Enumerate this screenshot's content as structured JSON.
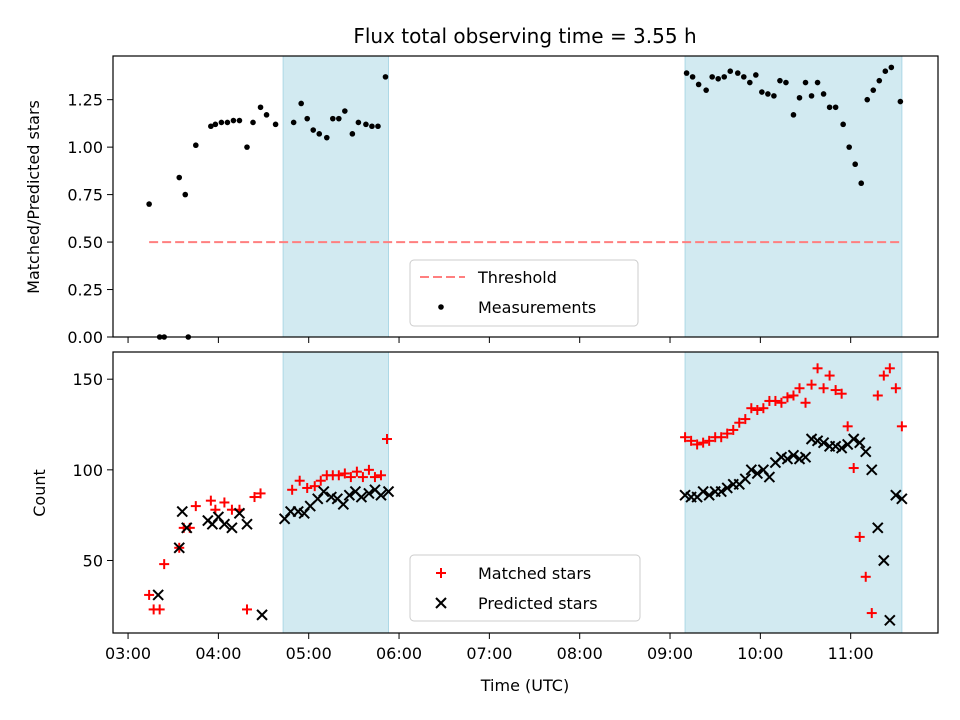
{
  "figure": {
    "title": "Flux total observing time = 3.55 h"
  },
  "chart_data": [
    {
      "type": "scatter",
      "panel": "top",
      "title": "Flux total observing time = 3.55 h",
      "xlabel": "",
      "ylabel": "Matched/Predicted stars",
      "xlim": [
        "02:50",
        "11:58"
      ],
      "ylim": [
        0,
        1.48
      ],
      "x_tick_labels": [],
      "y_ticks": [
        0.0,
        0.25,
        0.5,
        0.75,
        1.0,
        1.25
      ],
      "y_tick_labels": [
        "0.00",
        "0.25",
        "0.50",
        "0.75",
        "1.00",
        "1.25"
      ],
      "grid": false,
      "legend_position": "bottom-center",
      "legend": [
        "Threshold",
        "Measurements"
      ],
      "colors": {
        "threshold": "#ff7f7f",
        "measurements": "#000000",
        "span": "#add8e6"
      },
      "shaded_intervals": [
        [
          "04:43",
          "05:53"
        ],
        [
          "09:10",
          "11:34"
        ]
      ],
      "threshold": {
        "name": "Threshold",
        "value": 0.5,
        "x_range": [
          "03:14",
          "11:34"
        ]
      },
      "series": [
        {
          "name": "Measurements",
          "x": [
            "03:14",
            "03:21",
            "03:24",
            "03:34",
            "03:38",
            "03:40",
            "03:45",
            "03:55",
            "03:58",
            "04:02",
            "04:06",
            "04:10",
            "04:14",
            "04:19",
            "04:23",
            "04:28",
            "04:32",
            "04:38",
            "04:50",
            "04:55",
            "04:59",
            "05:03",
            "05:07",
            "05:12",
            "05:16",
            "05:20",
            "05:24",
            "05:29",
            "05:33",
            "05:38",
            "05:42",
            "05:46",
            "05:51",
            "09:11",
            "09:15",
            "09:19",
            "09:24",
            "09:28",
            "09:32",
            "09:36",
            "09:40",
            "09:45",
            "09:49",
            "09:53",
            "09:57",
            "10:01",
            "10:05",
            "10:09",
            "10:13",
            "10:17",
            "10:22",
            "10:26",
            "10:30",
            "10:34",
            "10:38",
            "10:42",
            "10:46",
            "10:50",
            "10:55",
            "10:59",
            "11:03",
            "11:07",
            "11:11",
            "11:15",
            "11:19",
            "11:23",
            "11:27",
            "11:33"
          ],
          "y": [
            0.7,
            0.0,
            0.0,
            0.84,
            0.75,
            0.0,
            1.01,
            1.11,
            1.12,
            1.13,
            1.13,
            1.14,
            1.14,
            1.0,
            1.13,
            1.21,
            1.17,
            1.12,
            1.13,
            1.23,
            1.15,
            1.09,
            1.07,
            1.05,
            1.15,
            1.15,
            1.19,
            1.07,
            1.13,
            1.12,
            1.11,
            1.11,
            1.37,
            1.39,
            1.37,
            1.33,
            1.3,
            1.37,
            1.36,
            1.37,
            1.4,
            1.39,
            1.37,
            1.34,
            1.38,
            1.29,
            1.28,
            1.27,
            1.35,
            1.34,
            1.17,
            1.26,
            1.34,
            1.27,
            1.34,
            1.28,
            1.21,
            1.21,
            1.12,
            1.0,
            0.91,
            0.81,
            1.25,
            1.3,
            1.35,
            1.4,
            1.42,
            1.24
          ]
        }
      ]
    },
    {
      "type": "scatter",
      "panel": "bottom",
      "title": "",
      "xlabel": "Time (UTC)",
      "ylabel": "Count",
      "xlim": [
        "02:50",
        "11:58"
      ],
      "ylim": [
        10,
        165
      ],
      "x_ticks": [
        "03:00",
        "04:00",
        "05:00",
        "06:00",
        "07:00",
        "08:00",
        "09:00",
        "10:00",
        "11:00"
      ],
      "y_ticks": [
        50,
        100,
        150
      ],
      "grid": false,
      "legend_position": "bottom-center",
      "legend": [
        "Matched stars",
        "Predicted stars"
      ],
      "colors": {
        "matched": "#ff0000",
        "predicted": "#000000",
        "span": "#add8e6"
      },
      "shaded_intervals": [
        [
          "04:43",
          "05:53"
        ],
        [
          "09:10",
          "11:34"
        ]
      ],
      "series": [
        {
          "name": "Matched stars",
          "marker": "plus",
          "x": [
            "03:14",
            "03:17",
            "03:21",
            "03:24",
            "03:34",
            "03:37",
            "03:41",
            "03:45",
            "03:55",
            "03:58",
            "04:04",
            "04:09",
            "04:14",
            "04:19",
            "04:24",
            "04:28",
            "04:49",
            "04:54",
            "04:59",
            "05:04",
            "05:08",
            "05:12",
            "05:16",
            "05:20",
            "05:24",
            "05:28",
            "05:32",
            "05:36",
            "05:40",
            "05:44",
            "05:48",
            "05:52",
            "09:10",
            "09:14",
            "09:18",
            "09:22",
            "09:26",
            "09:30",
            "09:34",
            "09:38",
            "09:42",
            "09:46",
            "09:50",
            "09:54",
            "09:58",
            "10:02",
            "10:06",
            "10:10",
            "10:14",
            "10:18",
            "10:22",
            "10:26",
            "10:30",
            "10:34",
            "10:38",
            "10:42",
            "10:46",
            "10:50",
            "10:54",
            "10:58",
            "11:02",
            "11:06",
            "11:10",
            "11:14",
            "11:18",
            "11:22",
            "11:26",
            "11:30",
            "11:34"
          ],
          "y": [
            31,
            23,
            23,
            48,
            57,
            68,
            68,
            80,
            83,
            78,
            82,
            78,
            78,
            23,
            85,
            87,
            89,
            94,
            90,
            91,
            94,
            97,
            97,
            97,
            98,
            96,
            99,
            96,
            100,
            96,
            97,
            117,
            118,
            116,
            114,
            115,
            116,
            118,
            118,
            120,
            122,
            126,
            128,
            134,
            133,
            134,
            138,
            138,
            137,
            140,
            141,
            145,
            137,
            147,
            156,
            145,
            152,
            144,
            142,
            124,
            101,
            63,
            41,
            21,
            141,
            152,
            156,
            145,
            124
          ],
          "y_clean_note": null
        },
        {
          "name": "Predicted stars",
          "marker": "x",
          "x": [
            "03:20",
            "03:34",
            "03:36",
            "03:39",
            "03:53",
            "03:56",
            "04:00",
            "04:04",
            "04:09",
            "04:14",
            "04:19",
            "04:29",
            "04:44",
            "04:48",
            "04:53",
            "04:57",
            "05:01",
            "05:06",
            "05:10",
            "05:15",
            "05:19",
            "05:23",
            "05:27",
            "05:31",
            "05:35",
            "05:40",
            "05:44",
            "05:48",
            "05:53",
            "09:10",
            "09:14",
            "09:18",
            "09:22",
            "09:26",
            "09:30",
            "09:34",
            "09:38",
            "09:42",
            "09:46",
            "09:50",
            "09:54",
            "09:58",
            "10:02",
            "10:06",
            "10:10",
            "10:14",
            "10:18",
            "10:22",
            "10:26",
            "10:30",
            "10:34",
            "10:38",
            "10:42",
            "10:46",
            "10:50",
            "10:54",
            "10:58",
            "11:02",
            "11:06",
            "11:10",
            "11:14",
            "11:18",
            "11:22",
            "11:26",
            "11:30",
            "11:34"
          ],
          "y": [
            31,
            57,
            77,
            68,
            72,
            70,
            74,
            70,
            68,
            76,
            70,
            20,
            73,
            77,
            77,
            76,
            80,
            84,
            88,
            85,
            84,
            81,
            86,
            88,
            85,
            87,
            89,
            86,
            88,
            86,
            85,
            85,
            88,
            86,
            88,
            88,
            90,
            92,
            92,
            95,
            100,
            98,
            100,
            96,
            104,
            107,
            106,
            108,
            106,
            107,
            117,
            116,
            115,
            113,
            113,
            112,
            114,
            117,
            115,
            110,
            100,
            68,
            50,
            17,
            86,
            84
          ],
          "y_clean_note": null
        }
      ]
    }
  ]
}
